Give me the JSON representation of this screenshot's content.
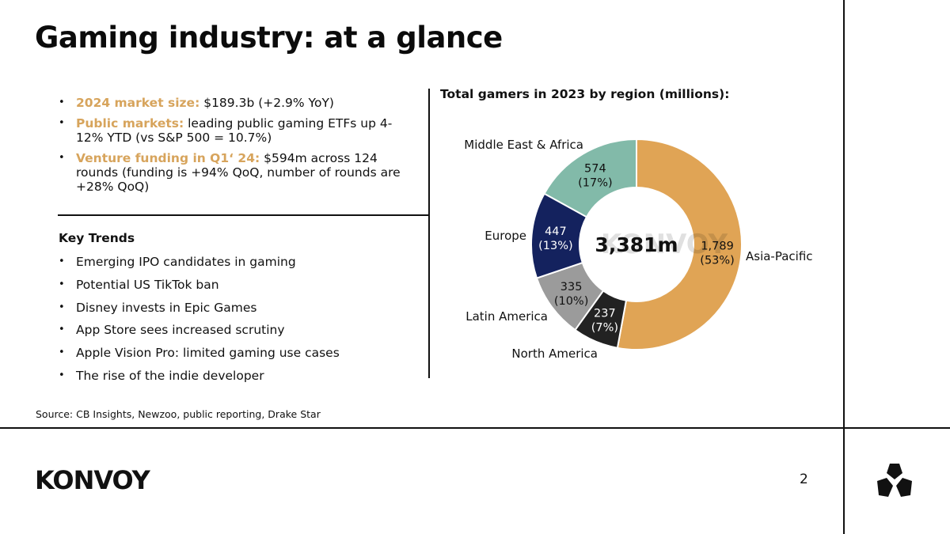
{
  "slide": {
    "title": "Gaming industry: at a glance",
    "page_number": "2",
    "source": "Source: CB Insights, Newzoo, public reporting, Drake Star",
    "logo": "KONVOY"
  },
  "highlights": [
    {
      "label": "2024 market size:",
      "text": " $189.3b (+2.9% YoY)"
    },
    {
      "label": "Public markets:",
      "text": " leading public gaming ETFs up 4-12% YTD (vs S&P 500 = 10.7%)"
    },
    {
      "label": "Venture funding in Q1‘ 24:",
      "text": " $594m across 124 rounds (funding is +94% QoQ, number of rounds are +28% QoQ)"
    }
  ],
  "trends": {
    "title": "Key Trends",
    "items": [
      "Emerging IPO candidates in gaming",
      "Potential US TikTok ban",
      "Disney invests in Epic Games",
      "App Store sees increased scrutiny",
      "Apple Vision Pro: limited gaming use cases",
      "The rise of the indie developer"
    ]
  },
  "colors": {
    "accent": "#d7a45c",
    "asia_pacific": "#e0a455",
    "north_america": "#222222",
    "latin_america": "#9b9b9b",
    "europe": "#14225e",
    "middle_east_africa": "#82baa9",
    "rule": "#111111"
  },
  "chart_data": {
    "type": "pie",
    "title": "Total gamers in 2023 by region (millions):",
    "total_label": "3,381m",
    "watermark": "KONVOY",
    "slices": [
      {
        "name": "Asia-Pacific",
        "value": 1789,
        "value_label": "1,789",
        "pct_label": "(53%)",
        "color_key": "asia_pacific",
        "label_color": "#111111"
      },
      {
        "name": "North America",
        "value": 237,
        "value_label": "237",
        "pct_label": "(7%)",
        "color_key": "north_america",
        "label_color": "#ffffff"
      },
      {
        "name": "Latin America",
        "value": 335,
        "value_label": "335",
        "pct_label": "(10%)",
        "color_key": "latin_america",
        "label_color": "#111111"
      },
      {
        "name": "Europe",
        "value": 447,
        "value_label": "447",
        "pct_label": "(13%)",
        "color_key": "europe",
        "label_color": "#ffffff"
      },
      {
        "name": "Middle East & Africa",
        "value": 574,
        "value_label": "574",
        "pct_label": "(17%)",
        "color_key": "middle_east_africa",
        "label_color": "#111111"
      }
    ]
  }
}
